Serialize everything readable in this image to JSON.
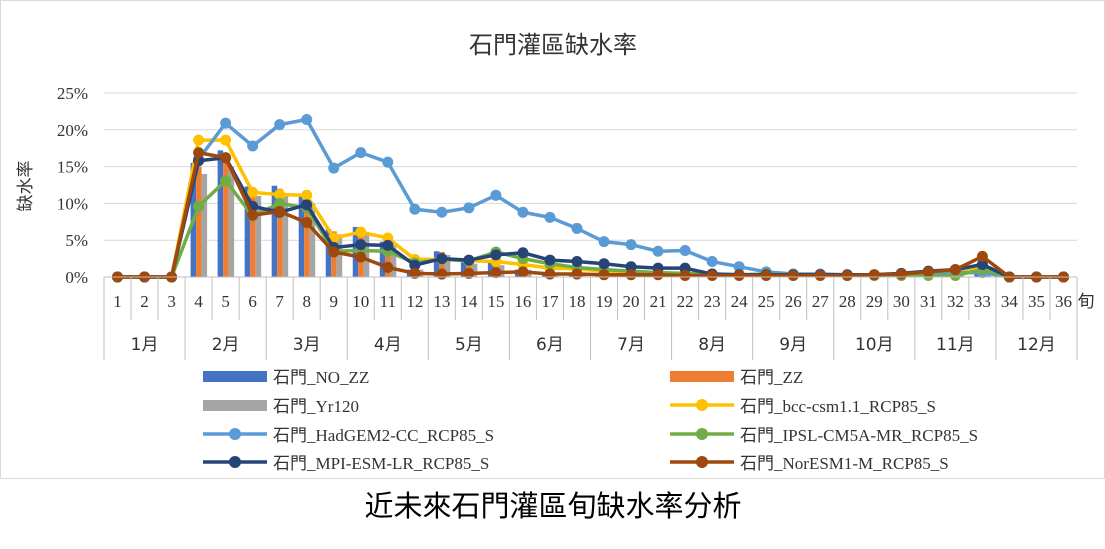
{
  "caption": "近未來石門灌區旬缺水率分析",
  "chart_data": {
    "type": "bar+line",
    "title": "石門灌區缺水率",
    "ylabel": "缺水率",
    "x_unit_label": "旬",
    "ylim": [
      0,
      0.25
    ],
    "yticks": [
      "0%",
      "5%",
      "10%",
      "15%",
      "20%",
      "25%"
    ],
    "yticks_values": [
      0,
      0.05,
      0.1,
      0.15,
      0.2,
      0.25
    ],
    "grid": "horizontal",
    "legend_position": "bottom",
    "categories": [
      "1",
      "2",
      "3",
      "4",
      "5",
      "6",
      "7",
      "8",
      "9",
      "10",
      "11",
      "12",
      "13",
      "14",
      "15",
      "16",
      "17",
      "18",
      "19",
      "20",
      "21",
      "22",
      "23",
      "24",
      "25",
      "26",
      "27",
      "28",
      "29",
      "30",
      "31",
      "32",
      "33",
      "34",
      "35",
      "36"
    ],
    "months": [
      "1月",
      "2月",
      "3月",
      "4月",
      "5月",
      "6月",
      "7月",
      "8月",
      "9月",
      "10月",
      "11月",
      "12月"
    ],
    "bar_series": [
      {
        "name": "石門_NO_ZZ",
        "color": "#4472C4",
        "values": [
          0,
          0,
          0,
          0.155,
          0.172,
          0.123,
          0.124,
          0.11,
          0.065,
          0.068,
          0.048,
          0.01,
          0.035,
          0.02,
          0.02,
          0.01,
          0.005,
          0.005,
          0.005,
          0.003,
          0.003,
          0.002,
          0.002,
          0.002,
          0.003,
          0.002,
          0.002,
          0.002,
          0.002,
          0.002,
          0.008,
          0.008,
          0.01,
          0,
          0,
          0
        ]
      },
      {
        "name": "石門_ZZ",
        "color": "#ED7D31",
        "values": [
          0,
          0,
          0,
          0.15,
          0.16,
          0.12,
          0.12,
          0.105,
          0.062,
          0.065,
          0.045,
          0.01,
          0.034,
          0.02,
          0.018,
          0.01,
          0.005,
          0.005,
          0.005,
          0.003,
          0.003,
          0.002,
          0.002,
          0.002,
          0.003,
          0.002,
          0.002,
          0.002,
          0.002,
          0.002,
          0.008,
          0.008,
          0.01,
          0,
          0,
          0
        ]
      },
      {
        "name": "石門_Yr120",
        "color": "#A5A5A5",
        "values": [
          0,
          0,
          0,
          0.14,
          0.15,
          0.11,
          0.11,
          0.1,
          0.058,
          0.06,
          0.043,
          0.01,
          0.03,
          0.018,
          0.016,
          0.01,
          0.005,
          0.005,
          0.005,
          0.003,
          0.003,
          0.002,
          0.002,
          0.002,
          0.003,
          0.002,
          0.002,
          0.002,
          0.002,
          0.002,
          0.008,
          0.008,
          0.01,
          0,
          0,
          0
        ]
      }
    ],
    "line_series": [
      {
        "name": "石門_bcc-csm1.1_RCP85_S",
        "color": "#FFC000",
        "values": [
          0,
          0,
          0,
          0.186,
          0.186,
          0.115,
          0.112,
          0.111,
          0.053,
          0.061,
          0.053,
          0.024,
          0.024,
          0.022,
          0.021,
          0.017,
          0.012,
          0.011,
          0.008,
          0.006,
          0.005,
          0.004,
          0.003,
          0.003,
          0.003,
          0.002,
          0.002,
          0.002,
          0.002,
          0.003,
          0.005,
          0.006,
          0.012,
          0,
          0,
          0
        ]
      },
      {
        "name": "石門_HadGEM2-CC_RCP85_S",
        "color": "#5B9BD5",
        "values": [
          0,
          0,
          0,
          0.16,
          0.209,
          0.178,
          0.207,
          0.214,
          0.148,
          0.169,
          0.156,
          0.092,
          0.088,
          0.094,
          0.111,
          0.088,
          0.081,
          0.066,
          0.048,
          0.044,
          0.035,
          0.036,
          0.021,
          0.014,
          0.007,
          0.004,
          0.004,
          0.003,
          0.003,
          0.004,
          0.006,
          0.006,
          0.006,
          0,
          0,
          0
        ]
      },
      {
        "name": "石門_IPSL-CM5A-MR_RCP85_S",
        "color": "#70AD47",
        "values": [
          0,
          0,
          0,
          0.096,
          0.131,
          0.083,
          0.1,
          0.094,
          0.035,
          0.036,
          0.035,
          0.019,
          0.024,
          0.022,
          0.034,
          0.025,
          0.018,
          0.013,
          0.01,
          0.008,
          0.006,
          0.005,
          0.004,
          0.003,
          0.004,
          0.003,
          0.003,
          0.002,
          0.002,
          0.002,
          0.002,
          0.002,
          0.01,
          0,
          0,
          0
        ]
      },
      {
        "name": "石門_MPI-ESM-LR_RCP85_S",
        "color": "#264478",
        "values": [
          0,
          0,
          0,
          0.158,
          0.162,
          0.096,
          0.088,
          0.098,
          0.04,
          0.044,
          0.043,
          0.016,
          0.025,
          0.023,
          0.03,
          0.033,
          0.023,
          0.021,
          0.018,
          0.014,
          0.012,
          0.012,
          0.004,
          0.003,
          0.003,
          0.003,
          0.003,
          0.003,
          0.003,
          0.005,
          0.008,
          0.01,
          0.017,
          0,
          0,
          0
        ]
      },
      {
        "name": "石門_NorESM1-M_RCP85_S",
        "color": "#9E480E",
        "values": [
          0,
          0,
          0,
          0.169,
          0.162,
          0.084,
          0.089,
          0.074,
          0.034,
          0.027,
          0.013,
          0.005,
          0.004,
          0.005,
          0.006,
          0.007,
          0.004,
          0.004,
          0.003,
          0.003,
          0.003,
          0.002,
          0.002,
          0.002,
          0.002,
          0.002,
          0.002,
          0.002,
          0.003,
          0.004,
          0.007,
          0.01,
          0.028,
          0,
          0,
          0
        ]
      }
    ]
  }
}
